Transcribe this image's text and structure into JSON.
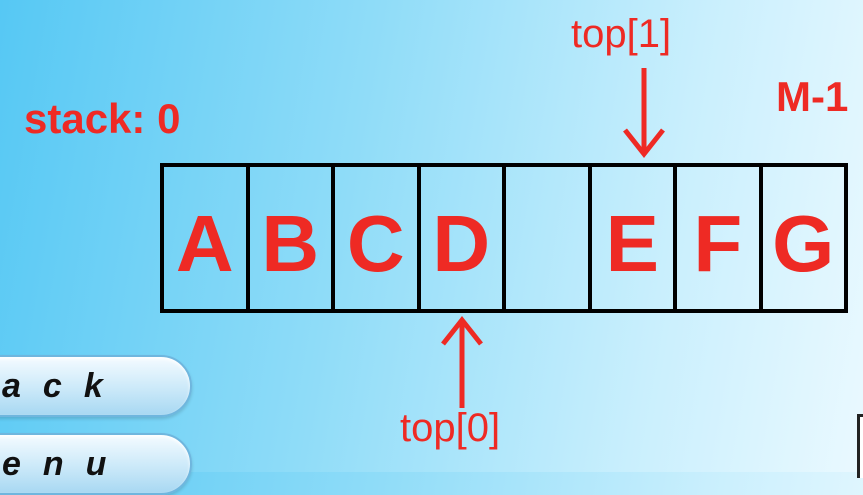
{
  "labels": {
    "stack": "stack: 0",
    "m_minus_1": "M-1",
    "top1": "top[1]",
    "top0": "top[0]"
  },
  "array_cells": [
    "A",
    "B",
    "C",
    "D",
    "",
    "E",
    "F",
    "G"
  ],
  "buttons": {
    "back": "ack",
    "menu": "enu"
  },
  "colors": {
    "accent": "#ee2a24",
    "border": "#000000",
    "background_start": "#56c8f4",
    "background_end": "#eaf9ff"
  }
}
